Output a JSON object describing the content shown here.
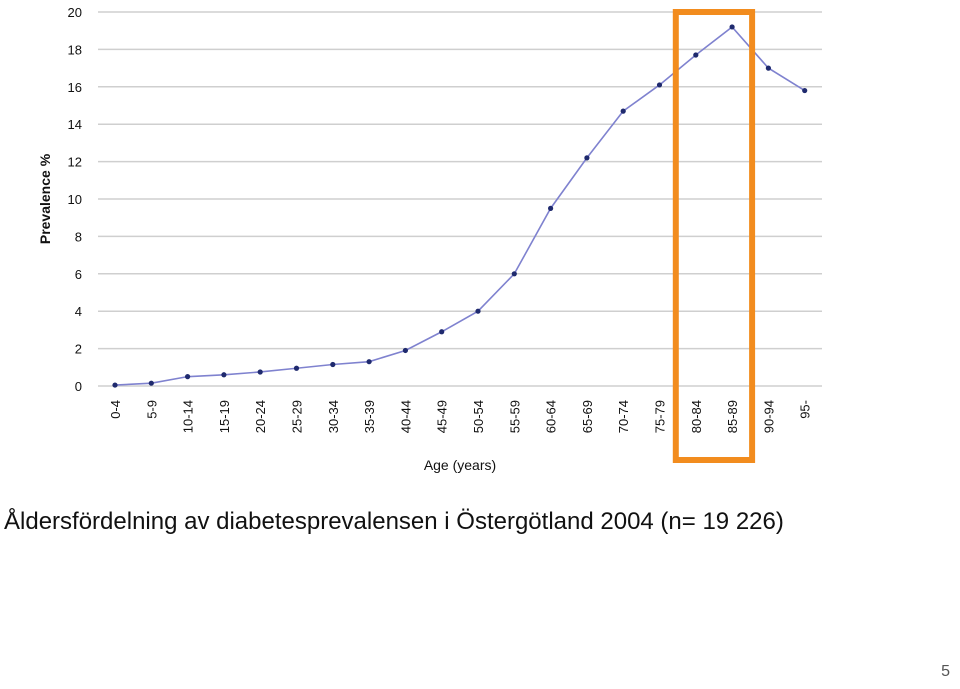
{
  "chart_data": {
    "type": "line",
    "categories": [
      "0-4",
      "5-9",
      "10-14",
      "15-19",
      "20-24",
      "25-29",
      "30-34",
      "35-39",
      "40-44",
      "45-49",
      "50-54",
      "55-59",
      "60-64",
      "65-69",
      "70-74",
      "75-79",
      "80-84",
      "85-89",
      "90-94",
      "95-"
    ],
    "series": [
      {
        "values": [
          0.05,
          0.15,
          0.5,
          0.6,
          0.75,
          0.95,
          1.15,
          1.3,
          1.9,
          2.9,
          4.0,
          6.0,
          9.5,
          12.2,
          14.7,
          16.1,
          17.7,
          19.2,
          17.0,
          15.8
        ]
      }
    ],
    "xlabel": "Age (years)",
    "ylabel": "Prevalence %",
    "ylim": [
      0,
      20
    ],
    "yticks": [
      0,
      2,
      4,
      6,
      8,
      10,
      12,
      14,
      16,
      18,
      20
    ],
    "grid": true,
    "highlight": {
      "categories": [
        "80-84",
        "85-89"
      ],
      "color": "#f28c1e"
    },
    "line_color": "#7f82cf",
    "marker_color": "#1f2a6e"
  },
  "caption": "Åldersfördelning av diabetesprevalensen i Östergötland 2004 (n= 19 226)",
  "slide_number": "5"
}
